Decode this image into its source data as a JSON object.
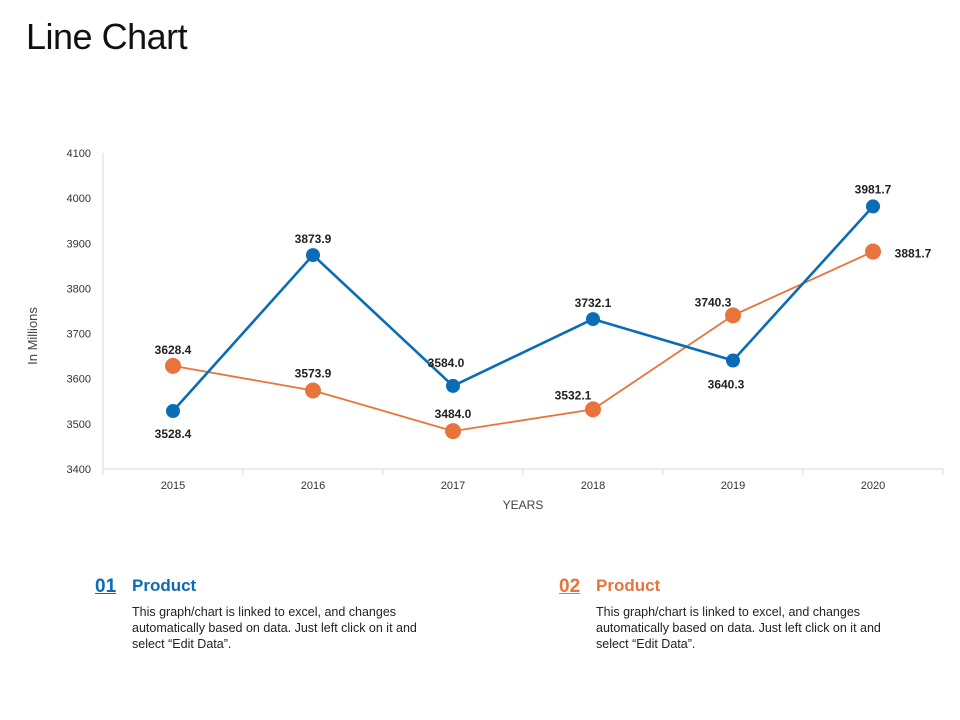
{
  "title": "Line Chart",
  "colors": {
    "series1": "#0a6cb4",
    "series2": "#e8743b",
    "axis": "#d9d9d9",
    "text": "#333333"
  },
  "chart_data": {
    "type": "line",
    "categories": [
      "2015",
      "2016",
      "2017",
      "2018",
      "2019",
      "2020"
    ],
    "series": [
      {
        "name": "Product 01",
        "color": "#0a6cb4",
        "values": [
          3528.4,
          3873.9,
          3584.0,
          3732.1,
          3640.3,
          3981.7
        ],
        "labels": [
          "3528.4",
          "3873.9",
          "3584.0",
          "3732.1",
          "3640.3",
          "3981.7"
        ]
      },
      {
        "name": "Product 02",
        "color": "#e8743b",
        "values": [
          3628.4,
          3573.9,
          3484.0,
          3532.1,
          3740.3,
          3881.7
        ],
        "labels": [
          "3628.4",
          "3573.9",
          "3484.0",
          "3532.1",
          "3740.3",
          "3881.7"
        ]
      }
    ],
    "xlabel": "YEARS",
    "ylabel": "In Millions",
    "ylim": [
      3400,
      4100
    ],
    "yticks": [
      3400,
      3500,
      3600,
      3700,
      3800,
      3900,
      4000,
      4100
    ],
    "grid": false
  },
  "legend": [
    {
      "num": "01",
      "heading": "Product",
      "text": "This graph/chart is linked to excel, and changes automatically based on data. Just left click on it and select “Edit Data”."
    },
    {
      "num": "02",
      "heading": "Product",
      "text": "This graph/chart is linked to excel, and changes automatically based on data. Just left click on it and select “Edit Data”."
    }
  ]
}
